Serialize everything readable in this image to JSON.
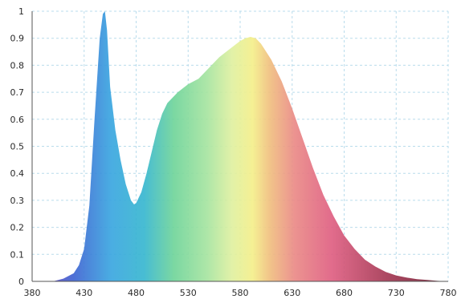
{
  "chart_data": {
    "type": "area",
    "title": "",
    "xlabel": "",
    "ylabel": "",
    "xlim": [
      380,
      780
    ],
    "ylim": [
      0,
      1
    ],
    "grid": true,
    "legend": "none",
    "x_ticks": [
      "380",
      "430",
      "480",
      "530",
      "580",
      "630",
      "680",
      "730",
      "780"
    ],
    "y_ticks": [
      "0",
      "0.1",
      "0.2",
      "0.3",
      "0.4",
      "0.5",
      "0.6",
      "0.7",
      "0.8",
      "0.9",
      "1"
    ],
    "series": [
      {
        "x": [
          380,
          400,
          410,
          420,
          425,
          430,
          435,
          440,
          445,
          448,
          450,
          452,
          455,
          460,
          465,
          470,
          475,
          478,
          480,
          485,
          490,
          495,
          500,
          505,
          510,
          520,
          530,
          540,
          550,
          560,
          570,
          580,
          585,
          590,
          595,
          600,
          605,
          610,
          620,
          630,
          640,
          650,
          660,
          670,
          680,
          690,
          700,
          710,
          720,
          730,
          740,
          750,
          760,
          770,
          780
        ],
        "y": [
          0.0,
          0.0,
          0.01,
          0.03,
          0.06,
          0.12,
          0.28,
          0.6,
          0.9,
          0.99,
          1.0,
          0.93,
          0.72,
          0.56,
          0.45,
          0.36,
          0.3,
          0.285,
          0.29,
          0.33,
          0.4,
          0.48,
          0.56,
          0.62,
          0.66,
          0.7,
          0.73,
          0.75,
          0.79,
          0.83,
          0.86,
          0.89,
          0.9,
          0.905,
          0.9,
          0.88,
          0.85,
          0.82,
          0.74,
          0.64,
          0.53,
          0.42,
          0.32,
          0.24,
          0.17,
          0.12,
          0.08,
          0.055,
          0.035,
          0.022,
          0.014,
          0.008,
          0.005,
          0.002,
          0.0
        ]
      }
    ],
    "colors": {
      "spectrum": [
        "#7a3fb8",
        "#3f64d2",
        "#3aa6e0",
        "#35bfc4",
        "#6fd49a",
        "#c5ea8f",
        "#f4ef8a",
        "#f0c07f",
        "#ea8a86",
        "#df5f82",
        "#a63955",
        "#6e1f33"
      ],
      "grid": "#b9dcec",
      "axis": "#555555"
    }
  }
}
